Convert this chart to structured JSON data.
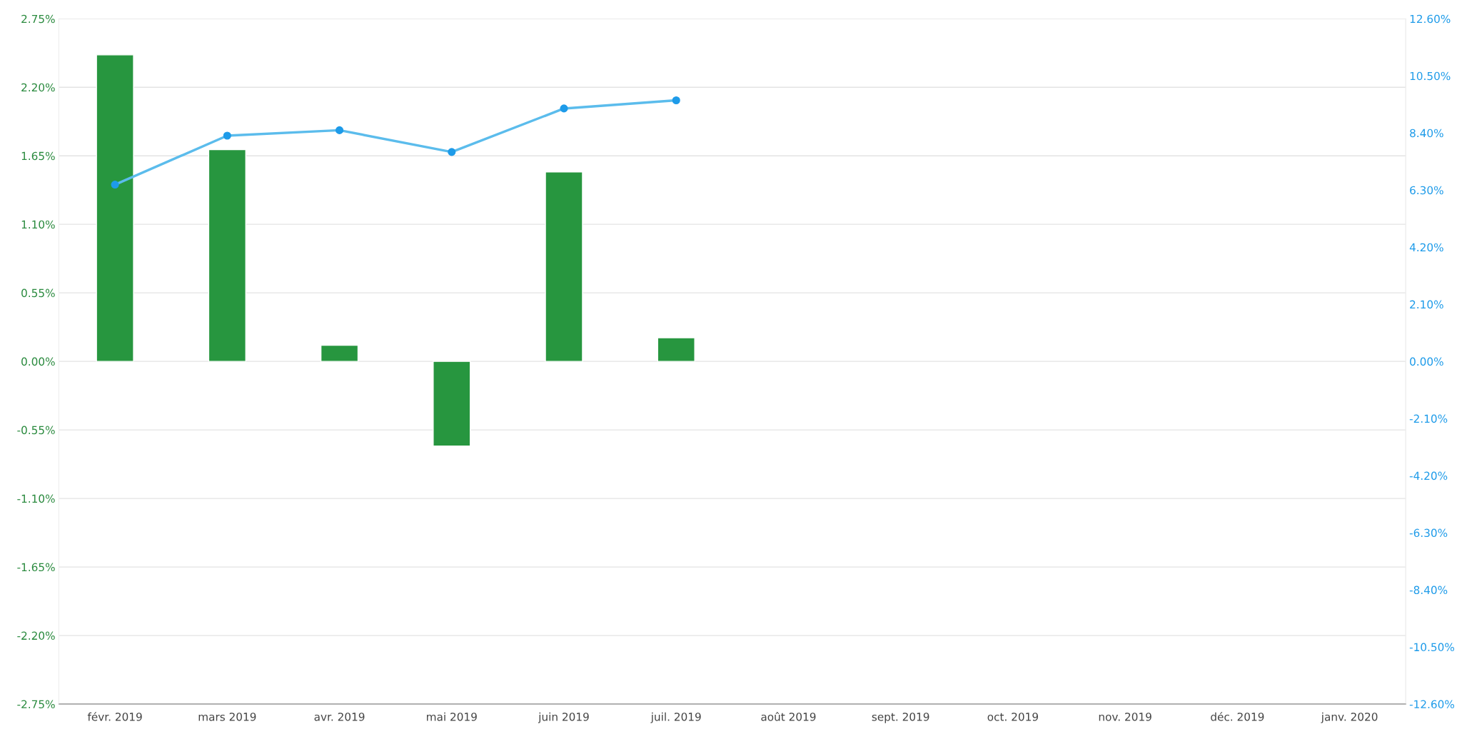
{
  "chart_data": {
    "type": "bar",
    "categories": [
      "févr. 2019",
      "mars 2019",
      "avr. 2019",
      "mai 2019",
      "juin 2019",
      "juil. 2019",
      "août 2019",
      "sept. 2019",
      "oct. 2019",
      "nov. 2019",
      "déc. 2019",
      "janv. 2020"
    ],
    "series": [
      {
        "color": "#27963f",
        "values": [
          2.46,
          1.7,
          0.13,
          -0.68,
          1.52,
          0.19,
          null,
          null,
          null,
          null,
          null,
          null
        ]
      },
      {
        "type": "line",
        "axis": "y2",
        "color": "#5bbcec",
        "values": [
          6.5,
          8.3,
          8.5,
          7.7,
          9.3,
          9.6,
          null,
          null,
          null,
          null,
          null,
          null
        ]
      }
    ],
    "ylim": [
      -2.75,
      2.75
    ],
    "yticks": [
      {
        "value": -2.75,
        "label": "-2.75%"
      },
      {
        "value": -2.2,
        "label": "-2.20%"
      },
      {
        "value": -1.65,
        "label": "-1.65%"
      },
      {
        "value": -1.1,
        "label": "-1.10%"
      },
      {
        "value": -0.55,
        "label": "-0.55%"
      },
      {
        "value": 0,
        "label": "0.00%"
      },
      {
        "value": 0.55,
        "label": "0.55%"
      },
      {
        "value": 1.1,
        "label": "1.10%"
      },
      {
        "value": 1.65,
        "label": "1.65%"
      },
      {
        "value": 2.2,
        "label": "2.20%"
      },
      {
        "value": 2.75,
        "label": "2.75%"
      }
    ],
    "y2lim": [
      -12.6,
      12.6
    ],
    "y2ticks": [
      {
        "value": -12.6,
        "label": "-12.60%"
      },
      {
        "value": -10.5,
        "label": "-10.50%"
      },
      {
        "value": -8.4,
        "label": "-8.40%"
      },
      {
        "value": -6.3,
        "label": "-6.30%"
      },
      {
        "value": -4.2,
        "label": "-4.20%"
      },
      {
        "value": -2.1,
        "label": "-2.10%"
      },
      {
        "value": 0,
        "label": "0.00%"
      },
      {
        "value": 2.1,
        "label": "2.10%"
      },
      {
        "value": 4.2,
        "label": "4.20%"
      },
      {
        "value": 6.3,
        "label": "6.30%"
      },
      {
        "value": 8.4,
        "label": "8.40%"
      },
      {
        "value": 10.5,
        "label": "10.50%"
      },
      {
        "value": 12.6,
        "label": "12.60%"
      }
    ],
    "grid": "y",
    "marker": "circle",
    "line_style": "solid"
  }
}
